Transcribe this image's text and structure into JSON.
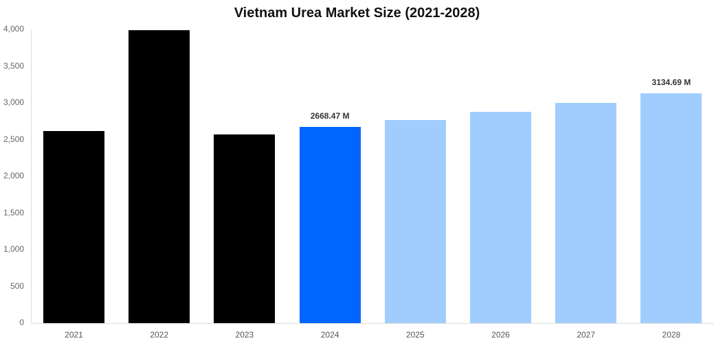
{
  "chart_data": {
    "type": "bar",
    "title": "Vietnam Urea Market Size (2021-2028)",
    "xlabel": "",
    "ylabel": "",
    "ylim": [
      0,
      4000
    ],
    "yticks": [
      "0",
      "500",
      "1,000",
      "1,500",
      "2,000",
      "2,500",
      "3,000",
      "3,500",
      "4,000"
    ],
    "categories": [
      "2021",
      "2022",
      "2023",
      "2024",
      "2025",
      "2026",
      "2027",
      "2028"
    ],
    "values": [
      2620,
      3990,
      2570,
      2668.47,
      2770,
      2880,
      3000,
      3134.69
    ],
    "colors": [
      "#000000",
      "#000000",
      "#000000",
      "#0066ff",
      "#a0cdfd",
      "#a0cdfd",
      "#a0cdfd",
      "#a0cdfd"
    ],
    "data_labels": [
      {
        "category": "2024",
        "text": "2668.47 M"
      },
      {
        "category": "2028",
        "text": "3134.69 M"
      }
    ],
    "grid": false,
    "legend": "none"
  }
}
